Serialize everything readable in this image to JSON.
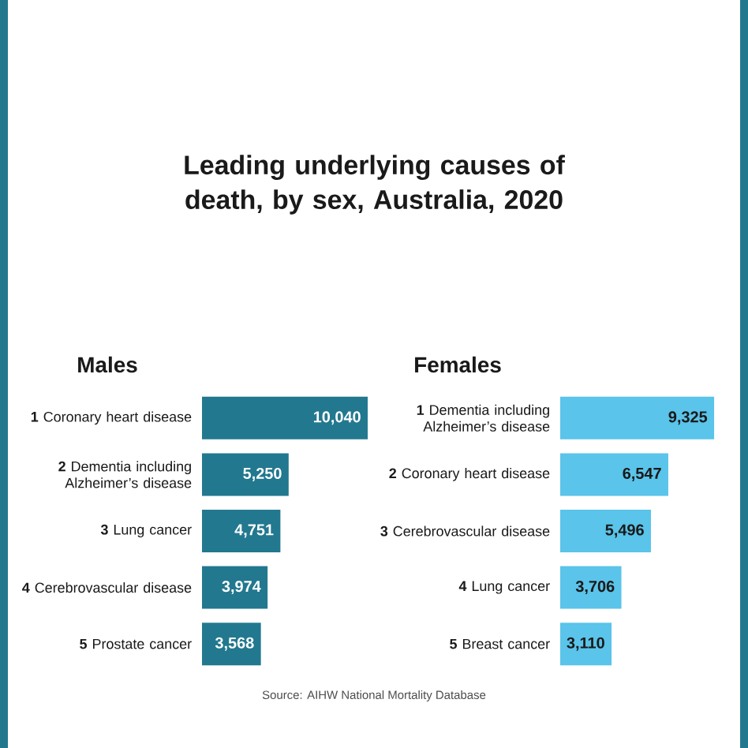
{
  "chart_data": [
    {
      "type": "bar",
      "orientation": "horizontal",
      "title": "Leading underlying causes of death, by sex, Australia, 2020",
      "subtitle": "Males",
      "categories": [
        "**1** Coronary heart disease",
        "**2** Dementia including Alzheimer’s disease",
        "**3** Lung cancer",
        "**4** Cerebrovascular disease",
        "**5** Prostate cancer"
      ],
      "values": [
        10040,
        5250,
        4751,
        3974,
        3568
      ],
      "color": "#22788f",
      "value_labels": [
        "10,040",
        "5,250",
        "4,751",
        "3,974",
        "3,568"
      ]
    },
    {
      "type": "bar",
      "orientation": "horizontal",
      "subtitle": "Females",
      "categories": [
        "**1** Dementia including Alzheimer’s disease",
        "**2** Coronary heart disease",
        "**3** Cerebrovascular disease",
        "**4** Lung cancer",
        "**5** Breast cancer"
      ],
      "values": [
        9325,
        6547,
        5496,
        3706,
        3110
      ],
      "color": "#5ac4ea",
      "value_labels": [
        "9,325",
        "6,547",
        "5,496",
        "3,706",
        "3,110"
      ],
      "annotations": [
        "Source: AIHW National Mortality Database"
      ]
    }
  ]
}
